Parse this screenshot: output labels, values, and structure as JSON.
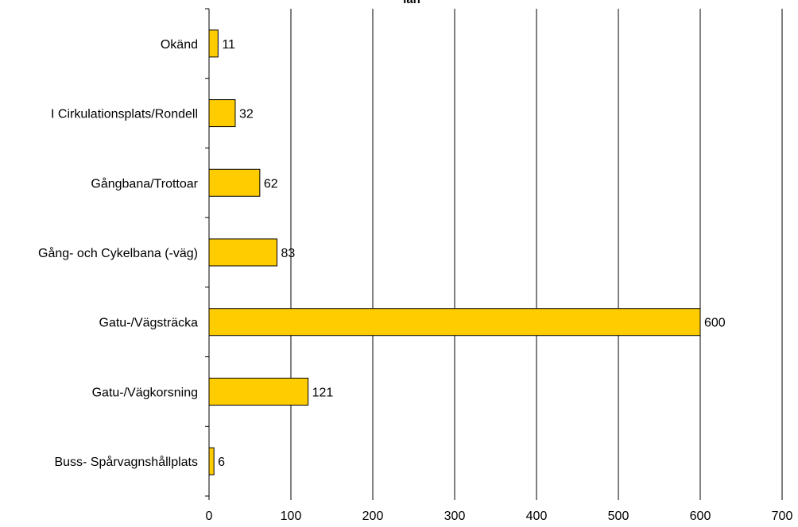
{
  "chart_data": {
    "type": "bar",
    "orientation": "horizontal",
    "title": "län",
    "categories": [
      "Okänd",
      "I Cirkulationsplats/Rondell",
      "Gångbana/Trottoar",
      "Gång- och Cykelbana (-väg)",
      "Gatu-/Vägsträcka",
      "Gatu-/Vägkorsning",
      "Buss- Spårvagnshållplats"
    ],
    "values": [
      11,
      32,
      62,
      83,
      600,
      121,
      6
    ],
    "data_labels": [
      "11",
      "32",
      "62",
      "83",
      "600",
      "121",
      "6"
    ],
    "xlabel": "",
    "ylabel": "",
    "xlim": [
      0,
      700
    ],
    "x_ticks": [
      0,
      100,
      200,
      300,
      400,
      500,
      600,
      700
    ],
    "x_tick_labels": [
      "0",
      "100",
      "200",
      "300",
      "400",
      "500",
      "600",
      "700"
    ],
    "grid": "vertical",
    "legend": "none",
    "colors": {
      "bar_fill": "#FFCC00",
      "bar_stroke": "#000000",
      "grid": "#000000",
      "axis": "#000000"
    }
  }
}
